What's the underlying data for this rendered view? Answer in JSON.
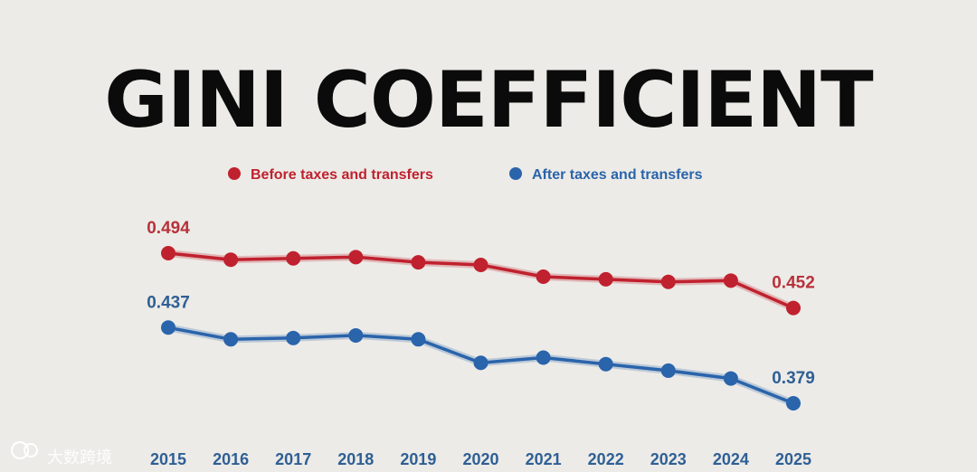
{
  "chart_data": {
    "type": "line",
    "title": "GINI COEFFICIENT",
    "categories": [
      "2015",
      "2016",
      "2017",
      "2018",
      "2019",
      "2020",
      "2021",
      "2022",
      "2023",
      "2024",
      "2025"
    ],
    "series": [
      {
        "name": "Before taxes and transfers",
        "color": "#c0212e",
        "values": [
          0.494,
          0.489,
          0.49,
          0.491,
          0.487,
          0.485,
          0.476,
          0.474,
          0.472,
          0.473,
          0.452
        ]
      },
      {
        "name": "After taxes and transfers",
        "color": "#2a64ab",
        "values": [
          0.437,
          0.428,
          0.429,
          0.431,
          0.428,
          0.41,
          0.414,
          0.409,
          0.404,
          0.398,
          0.379
        ]
      }
    ],
    "data_labels": [
      {
        "series": 0,
        "index": 0,
        "text": "0.494"
      },
      {
        "series": 0,
        "index": 10,
        "text": "0.452"
      },
      {
        "series": 1,
        "index": 0,
        "text": "0.437"
      },
      {
        "series": 1,
        "index": 10,
        "text": "0.379"
      }
    ],
    "legend_position": "top",
    "grid": false
  },
  "watermark": {
    "text": "大数跨境",
    "icon": "logo-icon"
  }
}
